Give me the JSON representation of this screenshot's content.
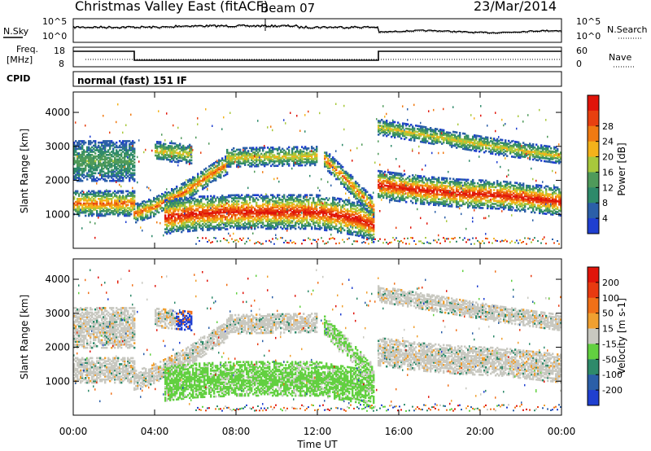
{
  "header": {
    "radar": "Christmas Valley East (fitACF)",
    "beam": "Beam 07",
    "date": "23/Mar/2014"
  },
  "panels": {
    "noise": {
      "left_label": "N.Sky",
      "right_label": "N.Search",
      "left_ticks": [
        "10^5",
        "10^0"
      ],
      "right_ticks": [
        "10^5",
        "10^0"
      ]
    },
    "freq": {
      "left_label_1": "Freq.",
      "left_label_2": "[MHz]",
      "right_label": "Nave",
      "left_ticks": [
        "18",
        "8"
      ],
      "right_ticks": [
        "60",
        "0"
      ]
    },
    "cpid": {
      "label": "CPID",
      "text": "normal (fast) 151 IF"
    }
  },
  "chart_data": {
    "type": "heatmap",
    "xlabel": "Time UT",
    "x_ticks": [
      "00:00",
      "04:00",
      "08:00",
      "12:00",
      "16:00",
      "20:00",
      "00:00"
    ],
    "xlim_hours": [
      0,
      24
    ],
    "power": {
      "ylabel": "Slant Range [km]",
      "y_ticks": [
        1000,
        2000,
        3000,
        4000
      ],
      "ylim": [
        0,
        4600
      ],
      "colorbar_label": "Power [dB]",
      "colorbar_ticks": [
        4,
        8,
        12,
        16,
        20,
        24,
        28
      ],
      "colors": [
        "#1f3fd0",
        "#2b5fa8",
        "#2e8a6a",
        "#4f9a5a",
        "#a8c83c",
        "#f4b21a",
        "#f07a12",
        "#e84010",
        "#e0140a"
      ]
    },
    "velocity": {
      "ylabel": "Slant Range [km]",
      "y_ticks": [
        1000,
        2000,
        3000,
        4000
      ],
      "ylim": [
        0,
        4600
      ],
      "colorbar_label": "Velocity [m s-1]",
      "colorbar_ticks": [
        200,
        100,
        50,
        15,
        -15,
        -50,
        -100,
        -200
      ],
      "colors": [
        "#1f3fd0",
        "#2b5fa8",
        "#2e8a6a",
        "#62d040",
        "#c8c8c0",
        "#f0a030",
        "#f07018",
        "#e83a10",
        "#e0140a"
      ]
    },
    "frequency_steps": [
      {
        "start_h": 0,
        "end_h": 3,
        "level": "high"
      },
      {
        "start_h": 3,
        "end_h": 15,
        "level": "low"
      },
      {
        "start_h": 15,
        "end_h": 24,
        "level": "high"
      }
    ]
  }
}
